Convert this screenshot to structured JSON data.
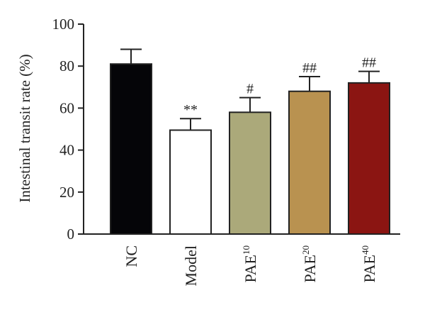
{
  "chart_data": {
    "type": "bar",
    "categories": [
      {
        "base": "NC",
        "sup": ""
      },
      {
        "base": "Model",
        "sup": ""
      },
      {
        "base": "PAE",
        "sup": "10"
      },
      {
        "base": "PAE",
        "sup": "20"
      },
      {
        "base": "PAE",
        "sup": "40"
      }
    ],
    "values": [
      81,
      49.5,
      58,
      68,
      72
    ],
    "errors": [
      7,
      5.5,
      7,
      7,
      5.5
    ],
    "annotations": [
      "",
      "**",
      "#",
      "##",
      "##"
    ],
    "colors": [
      "#050508",
      "#ffffff",
      "#aba97a",
      "#b99250",
      "#8b1512"
    ],
    "title": "",
    "xlabel": "",
    "ylabel": "Intestinal transit rate (%)",
    "ylim": [
      0,
      100
    ],
    "yticks": [
      0,
      20,
      40,
      60,
      80,
      100
    ],
    "grid": false,
    "legend": "none"
  }
}
